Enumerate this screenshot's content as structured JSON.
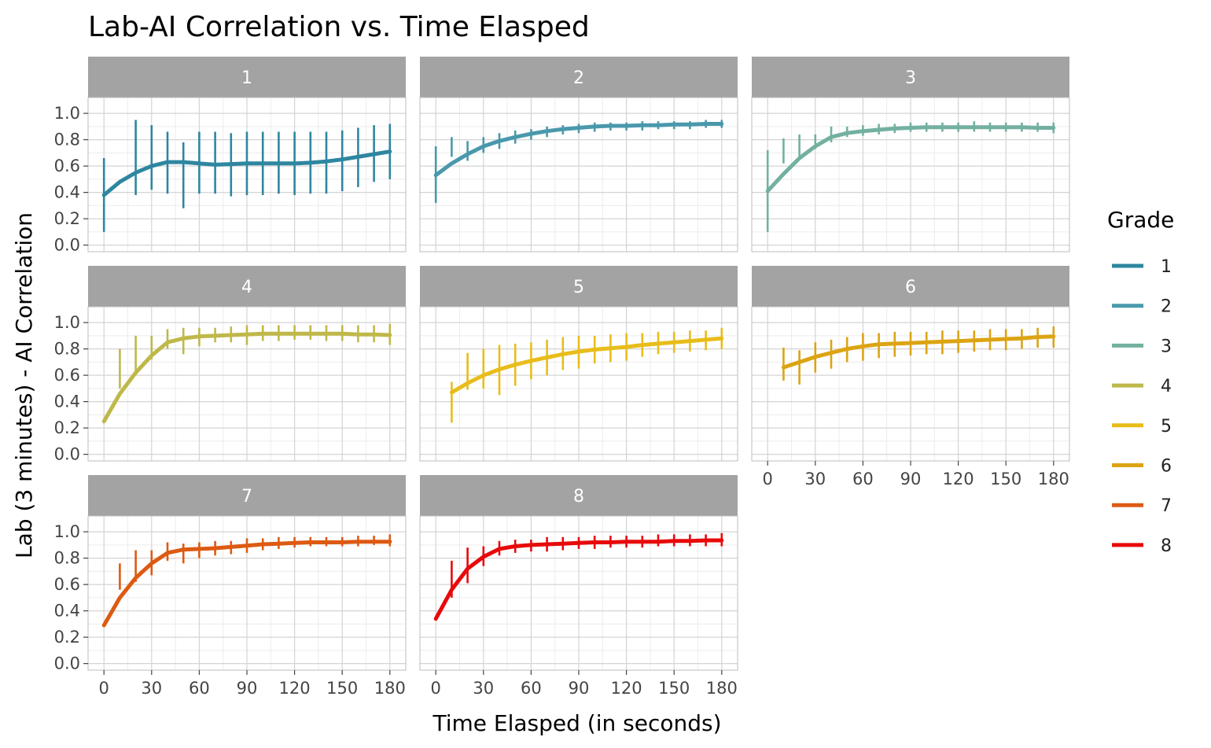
{
  "title": "Lab-AI Correlation vs. Time Elasped",
  "xlabel": "Time Elasped (in seconds)",
  "ylabel": "Lab (3 minutes) - AI Correlation",
  "legend": {
    "title": "Grade",
    "placement": "right"
  },
  "chart_data": {
    "type": "line",
    "facet_by": "Grade",
    "x_ticks": [
      0,
      30,
      60,
      90,
      120,
      150,
      180
    ],
    "y_ticks": [
      0.0,
      0.2,
      0.4,
      0.6,
      0.8,
      1.0
    ],
    "y_tick_labels": [
      "0.0",
      "0.2",
      "0.4",
      "0.6",
      "0.8",
      "1.0"
    ],
    "x_tick_labels": [
      "0",
      "30",
      "60",
      "90",
      "120",
      "150",
      "180"
    ],
    "xlim": [
      -10,
      190
    ],
    "ylim": [
      -0.05,
      1.12
    ],
    "grid": true,
    "error_x": [
      0,
      10,
      20,
      30,
      40,
      50,
      60,
      70,
      80,
      90,
      100,
      110,
      120,
      130,
      140,
      150,
      160,
      170,
      180
    ],
    "series": [
      {
        "name": "1",
        "color": "#2e86a0",
        "x": [
          0,
          10,
          20,
          30,
          40,
          50,
          60,
          70,
          80,
          90,
          100,
          110,
          120,
          130,
          140,
          150,
          160,
          170,
          180
        ],
        "y": [
          0.38,
          0.48,
          0.55,
          0.6,
          0.63,
          0.63,
          0.62,
          0.61,
          0.615,
          0.62,
          0.62,
          0.62,
          0.62,
          0.625,
          0.635,
          0.65,
          0.67,
          0.69,
          0.71
        ],
        "lower": [
          0.1,
          null,
          0.38,
          0.42,
          0.39,
          0.28,
          0.39,
          0.39,
          0.37,
          0.38,
          0.38,
          0.39,
          0.38,
          0.39,
          0.39,
          0.41,
          0.44,
          0.48,
          0.5
        ],
        "upper": [
          0.66,
          null,
          0.95,
          0.91,
          0.86,
          0.78,
          0.86,
          0.86,
          0.85,
          0.86,
          0.86,
          0.86,
          0.86,
          0.86,
          0.86,
          0.87,
          0.89,
          0.91,
          0.92
        ]
      },
      {
        "name": "2",
        "color": "#4a98ac",
        "x": [
          0,
          10,
          20,
          30,
          40,
          50,
          60,
          70,
          80,
          90,
          100,
          110,
          120,
          130,
          140,
          150,
          160,
          170,
          180
        ],
        "y": [
          0.53,
          0.62,
          0.69,
          0.75,
          0.79,
          0.82,
          0.845,
          0.865,
          0.88,
          0.89,
          0.9,
          0.905,
          0.905,
          0.91,
          0.91,
          0.915,
          0.915,
          0.92,
          0.92
        ],
        "lower": [
          0.32,
          0.67,
          0.64,
          0.7,
          0.73,
          0.77,
          0.8,
          0.82,
          0.84,
          0.85,
          0.86,
          0.87,
          0.87,
          0.87,
          0.88,
          0.88,
          0.88,
          0.89,
          0.89
        ],
        "upper": [
          0.75,
          0.82,
          0.79,
          0.82,
          0.85,
          0.87,
          0.88,
          0.9,
          0.91,
          0.92,
          0.93,
          0.93,
          0.93,
          0.94,
          0.94,
          0.94,
          0.94,
          0.95,
          0.95
        ]
      },
      {
        "name": "3",
        "color": "#73b0a0",
        "x": [
          0,
          10,
          20,
          30,
          40,
          50,
          60,
          70,
          80,
          90,
          100,
          110,
          120,
          130,
          140,
          150,
          160,
          170,
          180
        ],
        "y": [
          0.41,
          0.54,
          0.66,
          0.75,
          0.82,
          0.85,
          0.865,
          0.875,
          0.885,
          0.89,
          0.895,
          0.895,
          0.895,
          0.895,
          0.895,
          0.895,
          0.895,
          0.89,
          0.89
        ],
        "lower": [
          0.1,
          0.62,
          0.66,
          0.73,
          0.78,
          0.82,
          0.83,
          0.84,
          0.85,
          0.86,
          0.86,
          0.86,
          0.86,
          0.86,
          0.86,
          0.86,
          0.86,
          0.86,
          0.85
        ],
        "upper": [
          0.72,
          0.81,
          0.84,
          0.84,
          0.9,
          0.9,
          0.91,
          0.92,
          0.92,
          0.93,
          0.93,
          0.93,
          0.93,
          0.94,
          0.93,
          0.93,
          0.93,
          0.93,
          0.93
        ]
      },
      {
        "name": "4",
        "color": "#bfb84a",
        "x": [
          0,
          10,
          20,
          30,
          40,
          50,
          60,
          70,
          80,
          90,
          100,
          110,
          120,
          130,
          140,
          150,
          160,
          170,
          180
        ],
        "y": [
          0.25,
          0.46,
          0.62,
          0.75,
          0.85,
          0.88,
          0.895,
          0.9,
          0.905,
          0.91,
          0.915,
          0.915,
          0.915,
          0.915,
          0.915,
          0.915,
          0.91,
          0.91,
          0.905
        ],
        "lower": [
          null,
          0.5,
          0.6,
          0.72,
          0.8,
          0.76,
          0.82,
          0.85,
          0.85,
          0.83,
          0.86,
          0.86,
          0.87,
          0.87,
          0.86,
          0.86,
          0.85,
          0.85,
          0.83
        ],
        "upper": [
          null,
          0.8,
          0.9,
          0.9,
          0.95,
          0.96,
          0.96,
          0.96,
          0.97,
          0.98,
          0.98,
          0.98,
          0.98,
          0.98,
          0.98,
          0.98,
          0.98,
          0.98,
          0.99
        ]
      },
      {
        "name": "5",
        "color": "#e8bd1a",
        "x": [
          10,
          20,
          30,
          40,
          50,
          60,
          70,
          80,
          90,
          100,
          110,
          120,
          130,
          140,
          150,
          160,
          170,
          180
        ],
        "y": [
          0.47,
          0.54,
          0.6,
          0.645,
          0.68,
          0.71,
          0.735,
          0.76,
          0.78,
          0.795,
          0.805,
          0.815,
          0.83,
          0.84,
          0.85,
          0.86,
          0.87,
          0.88
        ],
        "lower": [
          0.24,
          0.49,
          0.5,
          0.45,
          0.52,
          0.57,
          0.6,
          0.64,
          0.65,
          0.69,
          0.7,
          0.71,
          0.74,
          0.76,
          0.77,
          0.78,
          0.79,
          0.8
        ],
        "upper": [
          0.55,
          0.77,
          0.8,
          0.83,
          0.84,
          0.85,
          0.87,
          0.89,
          0.9,
          0.9,
          0.91,
          0.92,
          0.92,
          0.93,
          0.93,
          0.94,
          0.94,
          0.96
        ]
      },
      {
        "name": "6",
        "color": "#dca414",
        "x": [
          10,
          20,
          30,
          40,
          50,
          60,
          70,
          80,
          90,
          100,
          110,
          120,
          130,
          140,
          150,
          160,
          170,
          180
        ],
        "y": [
          0.66,
          0.7,
          0.74,
          0.77,
          0.8,
          0.82,
          0.835,
          0.84,
          0.845,
          0.85,
          0.855,
          0.86,
          0.865,
          0.87,
          0.875,
          0.88,
          0.89,
          0.895
        ],
        "lower": [
          0.56,
          0.53,
          0.62,
          0.65,
          0.7,
          0.71,
          0.73,
          0.74,
          0.75,
          0.76,
          0.76,
          0.77,
          0.78,
          0.79,
          0.79,
          0.8,
          0.81,
          0.81
        ],
        "upper": [
          0.81,
          0.79,
          0.85,
          0.87,
          0.89,
          0.92,
          0.92,
          0.93,
          0.93,
          0.93,
          0.94,
          0.94,
          0.94,
          0.95,
          0.95,
          0.95,
          0.96,
          0.97
        ]
      },
      {
        "name": "7",
        "color": "#dd5a12",
        "x": [
          0,
          10,
          20,
          30,
          40,
          50,
          60,
          70,
          80,
          90,
          100,
          110,
          120,
          130,
          140,
          150,
          160,
          170,
          180
        ],
        "y": [
          0.29,
          0.5,
          0.65,
          0.76,
          0.84,
          0.865,
          0.87,
          0.875,
          0.885,
          0.895,
          0.905,
          0.91,
          0.915,
          0.92,
          0.92,
          0.92,
          0.925,
          0.925,
          0.925
        ],
        "lower": [
          null,
          0.56,
          0.62,
          0.67,
          0.78,
          0.76,
          0.8,
          0.82,
          0.83,
          0.84,
          0.86,
          0.87,
          0.88,
          0.89,
          0.89,
          0.89,
          0.89,
          0.9,
          0.89
        ],
        "upper": [
          null,
          0.76,
          0.86,
          0.86,
          0.92,
          0.91,
          0.92,
          0.93,
          0.93,
          0.95,
          0.95,
          0.96,
          0.96,
          0.96,
          0.96,
          0.96,
          0.97,
          0.97,
          0.98
        ]
      },
      {
        "name": "8",
        "color": "#e8090a",
        "x": [
          0,
          10,
          20,
          30,
          40,
          50,
          60,
          70,
          80,
          90,
          100,
          110,
          120,
          130,
          140,
          150,
          160,
          170,
          180
        ],
        "y": [
          0.34,
          0.56,
          0.72,
          0.81,
          0.87,
          0.89,
          0.9,
          0.905,
          0.91,
          0.915,
          0.92,
          0.92,
          0.925,
          0.925,
          0.925,
          0.93,
          0.93,
          0.935,
          0.935
        ],
        "lower": [
          null,
          0.5,
          0.61,
          0.74,
          0.82,
          0.84,
          0.85,
          0.85,
          0.86,
          0.87,
          0.87,
          0.88,
          0.88,
          0.88,
          0.89,
          0.89,
          0.89,
          0.89,
          0.89
        ],
        "upper": [
          null,
          0.78,
          0.88,
          0.89,
          0.93,
          0.94,
          0.94,
          0.96,
          0.96,
          0.96,
          0.97,
          0.97,
          0.97,
          0.97,
          0.98,
          0.98,
          0.98,
          0.98,
          0.99
        ]
      }
    ]
  }
}
